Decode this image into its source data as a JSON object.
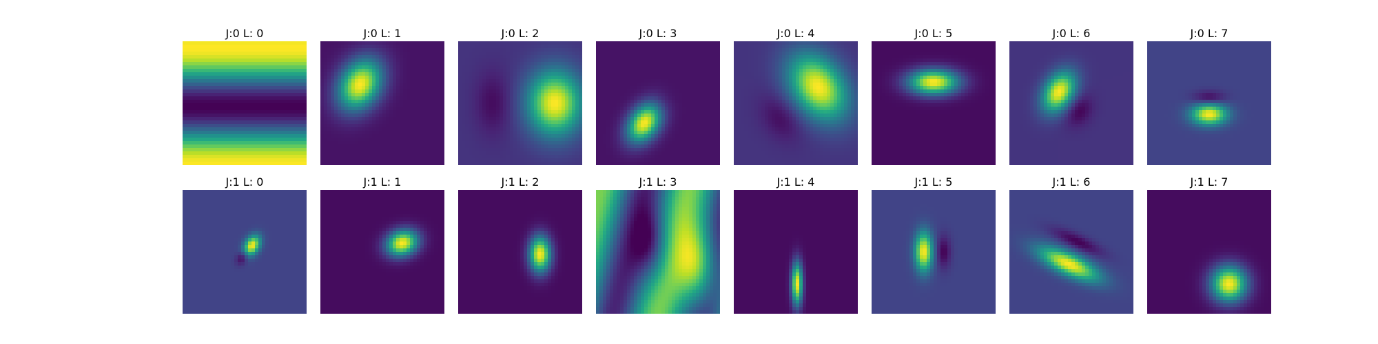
{
  "colormap": "viridis",
  "panels": [
    {
      "title": "J:0 L: 0",
      "pattern": "horizontal-bands",
      "background": 0.05
    },
    {
      "title": "J:0 L: 1",
      "pattern": "blob",
      "background": 0.05
    },
    {
      "title": "J:0 L: 2",
      "pattern": "blob-with-negative-lobe",
      "background": 0.15
    },
    {
      "title": "J:0 L: 3",
      "pattern": "blob-with-negative-lobe",
      "background": 0.05
    },
    {
      "title": "J:0 L: 4",
      "pattern": "blob-with-negative-lobe",
      "background": 0.15
    },
    {
      "title": "J:0 L: 5",
      "pattern": "blob",
      "background": 0.03
    },
    {
      "title": "J:0 L: 6",
      "pattern": "blob-with-negative-lobe",
      "background": 0.15
    },
    {
      "title": "J:0 L: 7",
      "pattern": "blob-with-negative-lobe",
      "background": 0.2
    },
    {
      "title": "J:1 L: 0",
      "pattern": "blob-with-negative-lobe",
      "background": 0.2
    },
    {
      "title": "J:1 L: 1",
      "pattern": "blob",
      "background": 0.03
    },
    {
      "title": "J:1 L: 2",
      "pattern": "blob",
      "background": 0.03
    },
    {
      "title": "J:1 L: 3",
      "pattern": "oblique-waves",
      "background": 0.5
    },
    {
      "title": "J:1 L: 4",
      "pattern": "blob",
      "background": 0.03
    },
    {
      "title": "J:1 L: 5",
      "pattern": "blob-with-negative-lobe",
      "background": 0.2
    },
    {
      "title": "J:1 L: 6",
      "pattern": "blob-with-negative-lobe",
      "background": 0.2
    },
    {
      "title": "J:1 L: 7",
      "pattern": "blob",
      "background": 0.03
    }
  ]
}
